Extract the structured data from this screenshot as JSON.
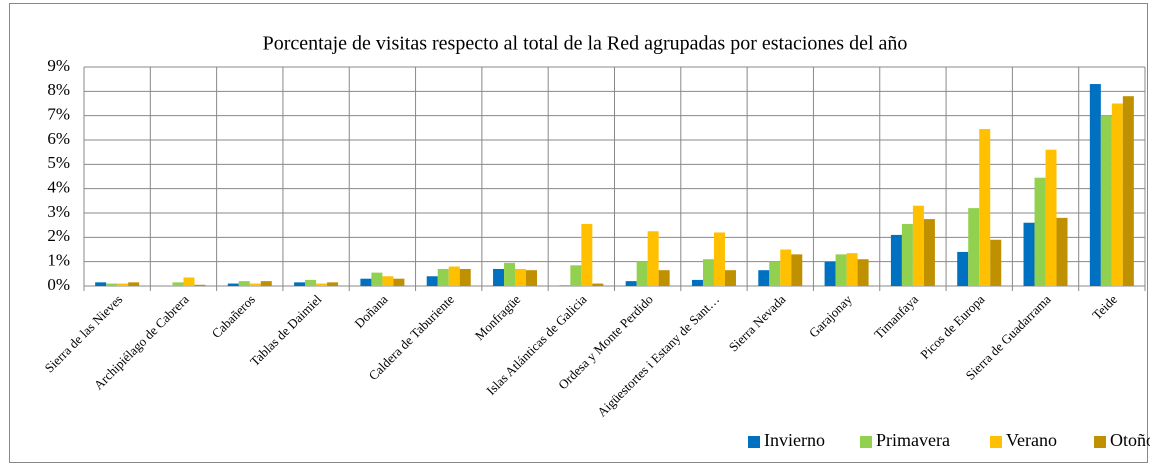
{
  "chart_data": {
    "type": "bar",
    "title": "Porcentaje de visitas  respecto al total de la Red agrupadas por estaciones del año",
    "categories": [
      "Sierra de las Nieves",
      "Archipiélago de Cabrera",
      "Cabañeros",
      "Tablas de Daimiel",
      "Doñana",
      "Caldera de Taburiente",
      "Monfragüe",
      "Islas Atlánticas de Galicia",
      "Ordesa y Monte Perdido",
      "Aigüestortes i Estany de Sant…",
      "Sierra Nevada",
      "Garajonay",
      "Timanfaya",
      "Picos de Europa",
      "Sierra de Guadarrama",
      "Teide"
    ],
    "series": [
      {
        "name": "Invierno",
        "color": "#0070c0",
        "values": [
          0.15,
          0.0,
          0.1,
          0.15,
          0.3,
          0.4,
          0.7,
          0.02,
          0.2,
          0.25,
          0.65,
          1.0,
          2.1,
          1.4,
          2.6,
          8.3
        ]
      },
      {
        "name": "Primavera",
        "color": "#92d050",
        "values": [
          0.1,
          0.15,
          0.2,
          0.25,
          0.55,
          0.7,
          0.95,
          0.85,
          1.0,
          1.1,
          1.0,
          1.3,
          2.55,
          3.2,
          4.45,
          7.0
        ]
      },
      {
        "name": "Verano",
        "color": "#ffc000",
        "values": [
          0.1,
          0.35,
          0.1,
          0.1,
          0.4,
          0.8,
          0.7,
          2.55,
          2.25,
          2.2,
          1.5,
          1.35,
          3.3,
          6.45,
          5.6,
          7.5
        ]
      },
      {
        "name": "Otoño",
        "color": "#bf9000",
        "values": [
          0.15,
          0.05,
          0.2,
          0.15,
          0.3,
          0.7,
          0.65,
          0.1,
          0.65,
          0.65,
          1.3,
          1.1,
          2.75,
          1.9,
          2.8,
          7.8
        ]
      }
    ],
    "ylim": [
      0,
      9
    ],
    "yticks": [
      {
        "value": 0,
        "label": "0%"
      },
      {
        "value": 1,
        "label": "1%"
      },
      {
        "value": 2,
        "label": "2%"
      },
      {
        "value": 3,
        "label": "3%"
      },
      {
        "value": 4,
        "label": "4%"
      },
      {
        "value": 5,
        "label": "5%"
      },
      {
        "value": 6,
        "label": "6%"
      },
      {
        "value": 7,
        "label": "7%"
      },
      {
        "value": 8,
        "label": "8%"
      },
      {
        "value": 9,
        "label": "9%"
      }
    ],
    "grid": true,
    "legend": "bottom-right"
  }
}
